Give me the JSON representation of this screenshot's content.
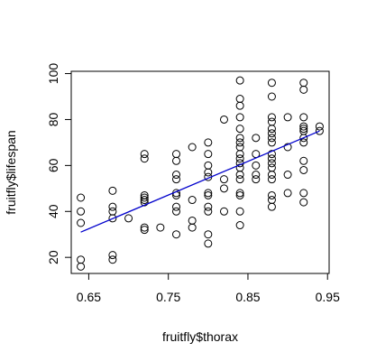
{
  "chart_data": {
    "type": "scatter",
    "xlabel": "fruitfly$thorax",
    "ylabel": "fruitfly$lifespan",
    "xlim": [
      0.628,
      0.952
    ],
    "ylim": [
      13,
      101
    ],
    "x_ticks": [
      0.65,
      0.75,
      0.85,
      0.95
    ],
    "x_tick_labels": [
      "0.65",
      "0.75",
      "0.85",
      "0.95"
    ],
    "y_ticks": [
      20,
      40,
      60,
      80,
      100
    ],
    "y_tick_labels": [
      "20",
      "40",
      "60",
      "80",
      "100"
    ],
    "grid": false,
    "point_color": "#000000",
    "fit_line_color": "#0000cc",
    "fit_line": {
      "x": [
        0.64,
        0.94
      ],
      "y": [
        31,
        75
      ]
    },
    "points": [
      [
        0.64,
        46
      ],
      [
        0.64,
        40
      ],
      [
        0.64,
        35
      ],
      [
        0.64,
        19
      ],
      [
        0.64,
        16
      ],
      [
        0.68,
        49
      ],
      [
        0.68,
        42
      ],
      [
        0.68,
        40
      ],
      [
        0.68,
        37
      ],
      [
        0.68,
        21
      ],
      [
        0.68,
        19
      ],
      [
        0.7,
        37
      ],
      [
        0.72,
        65
      ],
      [
        0.72,
        63
      ],
      [
        0.72,
        47
      ],
      [
        0.72,
        46
      ],
      [
        0.72,
        45
      ],
      [
        0.72,
        44
      ],
      [
        0.72,
        33
      ],
      [
        0.72,
        32
      ],
      [
        0.74,
        33
      ],
      [
        0.76,
        65
      ],
      [
        0.76,
        62
      ],
      [
        0.76,
        56
      ],
      [
        0.76,
        54
      ],
      [
        0.76,
        48
      ],
      [
        0.76,
        47
      ],
      [
        0.76,
        42
      ],
      [
        0.76,
        40
      ],
      [
        0.76,
        30
      ],
      [
        0.78,
        68
      ],
      [
        0.78,
        45
      ],
      [
        0.78,
        36
      ],
      [
        0.78,
        33
      ],
      [
        0.8,
        70
      ],
      [
        0.8,
        65
      ],
      [
        0.8,
        60
      ],
      [
        0.8,
        57
      ],
      [
        0.8,
        55
      ],
      [
        0.8,
        48
      ],
      [
        0.8,
        47
      ],
      [
        0.8,
        42
      ],
      [
        0.8,
        40
      ],
      [
        0.8,
        30
      ],
      [
        0.8,
        26
      ],
      [
        0.82,
        80
      ],
      [
        0.82,
        54
      ],
      [
        0.82,
        50
      ],
      [
        0.82,
        40
      ],
      [
        0.84,
        97
      ],
      [
        0.84,
        89
      ],
      [
        0.84,
        86
      ],
      [
        0.84,
        81
      ],
      [
        0.84,
        76
      ],
      [
        0.84,
        72
      ],
      [
        0.84,
        70
      ],
      [
        0.84,
        68
      ],
      [
        0.84,
        65
      ],
      [
        0.84,
        63
      ],
      [
        0.84,
        61
      ],
      [
        0.84,
        59
      ],
      [
        0.84,
        56
      ],
      [
        0.84,
        54
      ],
      [
        0.84,
        48
      ],
      [
        0.84,
        47
      ],
      [
        0.84,
        40
      ],
      [
        0.84,
        34
      ],
      [
        0.86,
        72
      ],
      [
        0.86,
        65
      ],
      [
        0.86,
        60
      ],
      [
        0.86,
        56
      ],
      [
        0.86,
        54
      ],
      [
        0.88,
        96
      ],
      [
        0.88,
        90
      ],
      [
        0.88,
        81
      ],
      [
        0.88,
        79
      ],
      [
        0.88,
        76
      ],
      [
        0.88,
        74
      ],
      [
        0.88,
        72
      ],
      [
        0.88,
        70
      ],
      [
        0.88,
        65
      ],
      [
        0.88,
        63
      ],
      [
        0.88,
        61
      ],
      [
        0.88,
        59
      ],
      [
        0.88,
        56
      ],
      [
        0.88,
        54
      ],
      [
        0.88,
        47
      ],
      [
        0.88,
        45
      ],
      [
        0.88,
        42
      ],
      [
        0.9,
        81
      ],
      [
        0.9,
        68
      ],
      [
        0.9,
        56
      ],
      [
        0.9,
        48
      ],
      [
        0.92,
        96
      ],
      [
        0.92,
        93
      ],
      [
        0.92,
        81
      ],
      [
        0.92,
        77
      ],
      [
        0.92,
        76
      ],
      [
        0.92,
        75
      ],
      [
        0.92,
        72
      ],
      [
        0.92,
        70
      ],
      [
        0.92,
        62
      ],
      [
        0.92,
        58
      ],
      [
        0.92,
        48
      ],
      [
        0.92,
        44
      ],
      [
        0.94,
        77
      ],
      [
        0.94,
        75
      ]
    ]
  }
}
